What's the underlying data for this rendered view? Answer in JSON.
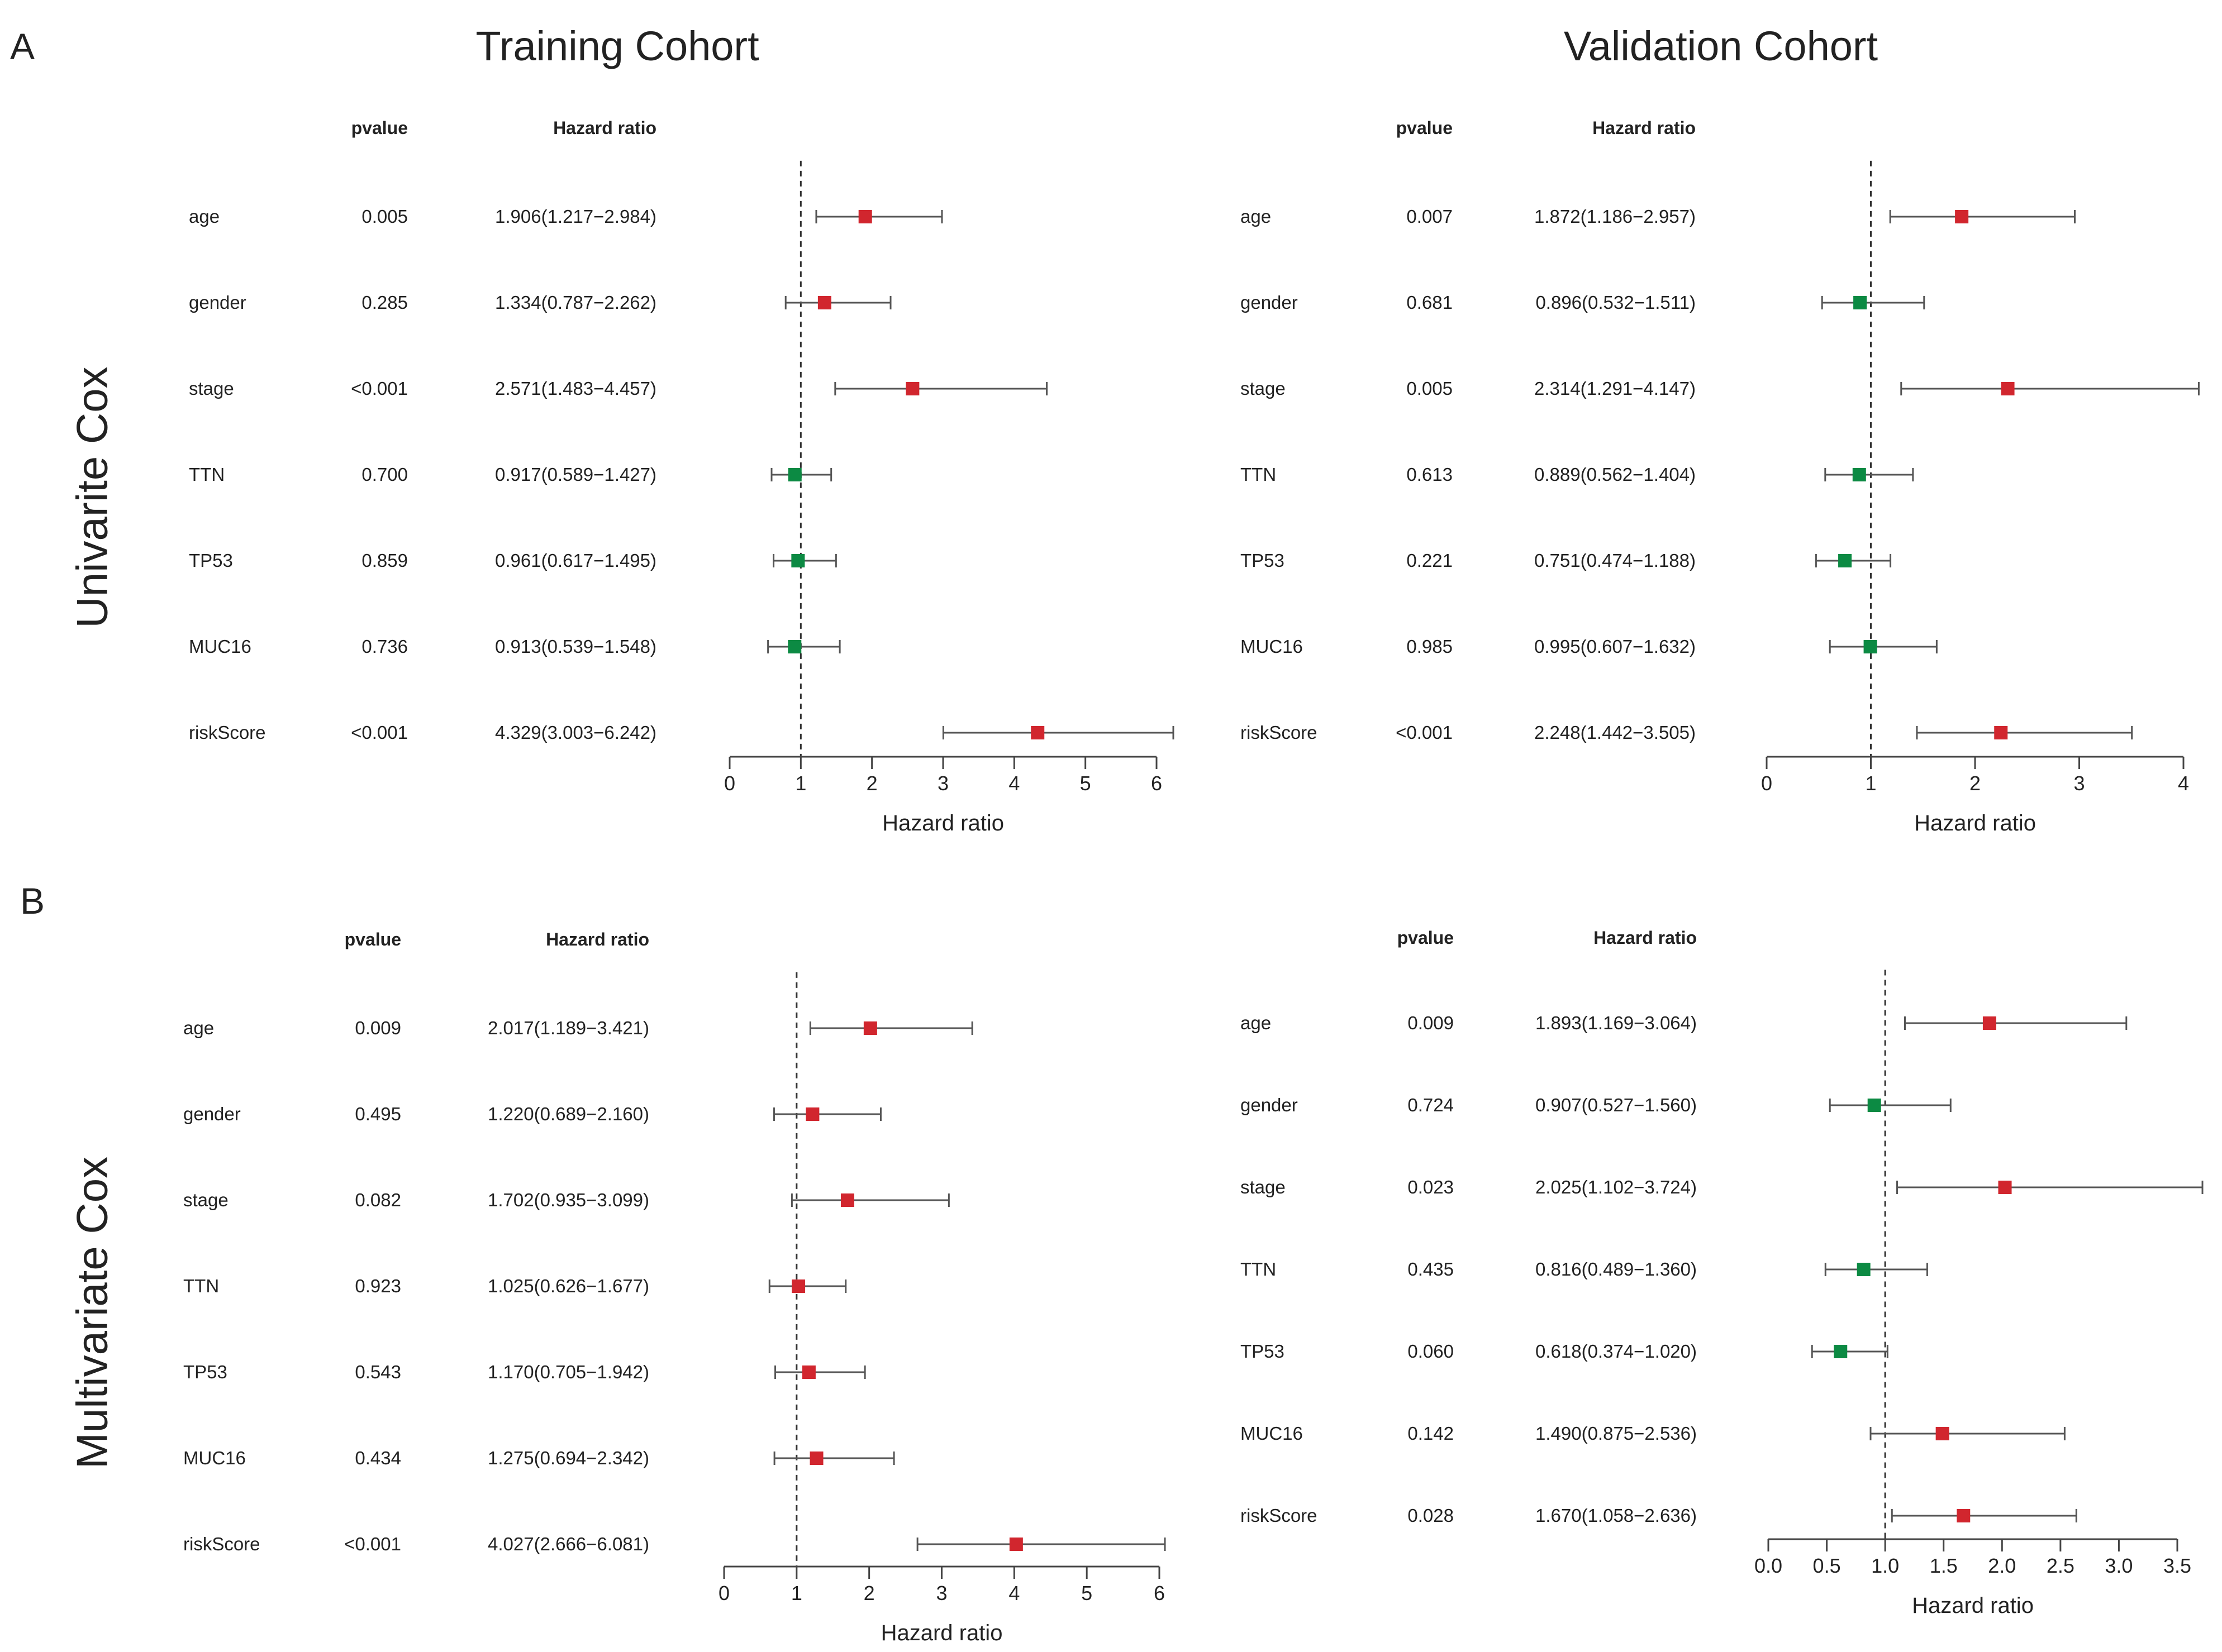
{
  "panel_labels": {
    "A": "A",
    "B": "B"
  },
  "cohort_titles": {
    "training": "Training Cohort",
    "validation": "Validation Cohort"
  },
  "row_labels": {
    "univariate": "Univarite Cox",
    "multivariate": "Multivariate Cox"
  },
  "colors": {
    "harmful": "#d1262e",
    "protective": "#0c8a43",
    "axis": "#444444"
  },
  "chart_data": [
    {
      "id": "uni-train",
      "type": "forest",
      "header": {
        "pvalue": "pvalue",
        "hr": "Hazard ratio"
      },
      "xlabel": "Hazard ratio",
      "xlim": [
        0,
        6
      ],
      "ticks": [
        "0",
        "1",
        "2",
        "3",
        "4",
        "5",
        "6"
      ],
      "tick_values": [
        0,
        1,
        2,
        3,
        4,
        5,
        6
      ],
      "ref": 1,
      "rows": [
        {
          "name": "age",
          "p": "0.005",
          "text": "1.906(1.217−2.984)",
          "hr": 1.906,
          "lo": 1.217,
          "hi": 2.984
        },
        {
          "name": "gender",
          "p": "0.285",
          "text": "1.334(0.787−2.262)",
          "hr": 1.334,
          "lo": 0.787,
          "hi": 2.262
        },
        {
          "name": "stage",
          "p": "<0.001",
          "text": "2.571(1.483−4.457)",
          "hr": 2.571,
          "lo": 1.483,
          "hi": 4.457
        },
        {
          "name": "TTN",
          "p": "0.700",
          "text": "0.917(0.589−1.427)",
          "hr": 0.917,
          "lo": 0.589,
          "hi": 1.427
        },
        {
          "name": "TP53",
          "p": "0.859",
          "text": "0.961(0.617−1.495)",
          "hr": 0.961,
          "lo": 0.617,
          "hi": 1.495
        },
        {
          "name": "MUC16",
          "p": "0.736",
          "text": "0.913(0.539−1.548)",
          "hr": 0.913,
          "lo": 0.539,
          "hi": 1.548
        },
        {
          "name": "riskScore",
          "p": "<0.001",
          "text": "4.329(3.003−6.242)",
          "hr": 4.329,
          "lo": 3.003,
          "hi": 6.242
        }
      ]
    },
    {
      "id": "uni-valid",
      "type": "forest",
      "header": {
        "pvalue": "pvalue",
        "hr": "Hazard ratio"
      },
      "xlabel": "Hazard ratio",
      "xlim": [
        0,
        4
      ],
      "ticks": [
        "0",
        "1",
        "2",
        "3",
        "4"
      ],
      "tick_values": [
        0,
        1,
        2,
        3,
        4
      ],
      "ref": 1,
      "rows": [
        {
          "name": "age",
          "p": "0.007",
          "text": "1.872(1.186−2.957)",
          "hr": 1.872,
          "lo": 1.186,
          "hi": 2.957
        },
        {
          "name": "gender",
          "p": "0.681",
          "text": "0.896(0.532−1.511)",
          "hr": 0.896,
          "lo": 0.532,
          "hi": 1.511
        },
        {
          "name": "stage",
          "p": "0.005",
          "text": "2.314(1.291−4.147)",
          "hr": 2.314,
          "lo": 1.291,
          "hi": 4.147
        },
        {
          "name": "TTN",
          "p": "0.613",
          "text": "0.889(0.562−1.404)",
          "hr": 0.889,
          "lo": 0.562,
          "hi": 1.404
        },
        {
          "name": "TP53",
          "p": "0.221",
          "text": "0.751(0.474−1.188)",
          "hr": 0.751,
          "lo": 0.474,
          "hi": 1.188
        },
        {
          "name": "MUC16",
          "p": "0.985",
          "text": "0.995(0.607−1.632)",
          "hr": 0.995,
          "lo": 0.607,
          "hi": 1.632
        },
        {
          "name": "riskScore",
          "p": "<0.001",
          "text": "2.248(1.442−3.505)",
          "hr": 2.248,
          "lo": 1.442,
          "hi": 3.505
        }
      ]
    },
    {
      "id": "multi-train",
      "type": "forest",
      "header": {
        "pvalue": "pvalue",
        "hr": "Hazard ratio"
      },
      "xlabel": "Hazard ratio",
      "xlim": [
        0,
        6
      ],
      "ticks": [
        "0",
        "1",
        "2",
        "3",
        "4",
        "5",
        "6"
      ],
      "tick_values": [
        0,
        1,
        2,
        3,
        4,
        5,
        6
      ],
      "ref": 1,
      "rows": [
        {
          "name": "age",
          "p": "0.009",
          "text": "2.017(1.189−3.421)",
          "hr": 2.017,
          "lo": 1.189,
          "hi": 3.421
        },
        {
          "name": "gender",
          "p": "0.495",
          "text": "1.220(0.689−2.160)",
          "hr": 1.22,
          "lo": 0.689,
          "hi": 2.16
        },
        {
          "name": "stage",
          "p": "0.082",
          "text": "1.702(0.935−3.099)",
          "hr": 1.702,
          "lo": 0.935,
          "hi": 3.099
        },
        {
          "name": "TTN",
          "p": "0.923",
          "text": "1.025(0.626−1.677)",
          "hr": 1.025,
          "lo": 0.626,
          "hi": 1.677
        },
        {
          "name": "TP53",
          "p": "0.543",
          "text": "1.170(0.705−1.942)",
          "hr": 1.17,
          "lo": 0.705,
          "hi": 1.942
        },
        {
          "name": "MUC16",
          "p": "0.434",
          "text": "1.275(0.694−2.342)",
          "hr": 1.275,
          "lo": 0.694,
          "hi": 2.342
        },
        {
          "name": "riskScore",
          "p": "<0.001",
          "text": "4.027(2.666−6.081)",
          "hr": 4.027,
          "lo": 2.666,
          "hi": 6.081
        }
      ]
    },
    {
      "id": "multi-valid",
      "type": "forest",
      "header": {
        "pvalue": "pvalue",
        "hr": "Hazard ratio"
      },
      "xlabel": "Hazard ratio",
      "xlim": [
        0,
        3.5
      ],
      "ticks": [
        "0.0",
        "0.5",
        "1.0",
        "1.5",
        "2.0",
        "2.5",
        "3.0",
        "3.5"
      ],
      "tick_values": [
        0,
        0.5,
        1,
        1.5,
        2,
        2.5,
        3,
        3.5
      ],
      "ref": 1,
      "rows": [
        {
          "name": "age",
          "p": "0.009",
          "text": "1.893(1.169−3.064)",
          "hr": 1.893,
          "lo": 1.169,
          "hi": 3.064
        },
        {
          "name": "gender",
          "p": "0.724",
          "text": "0.907(0.527−1.560)",
          "hr": 0.907,
          "lo": 0.527,
          "hi": 1.56
        },
        {
          "name": "stage",
          "p": "0.023",
          "text": "2.025(1.102−3.724)",
          "hr": 2.025,
          "lo": 1.102,
          "hi": 3.724
        },
        {
          "name": "TTN",
          "p": "0.435",
          "text": "0.816(0.489−1.360)",
          "hr": 0.816,
          "lo": 0.489,
          "hi": 1.36
        },
        {
          "name": "TP53",
          "p": "0.060",
          "text": "0.618(0.374−1.020)",
          "hr": 0.618,
          "lo": 0.374,
          "hi": 1.02
        },
        {
          "name": "MUC16",
          "p": "0.142",
          "text": "1.490(0.875−2.536)",
          "hr": 1.49,
          "lo": 0.875,
          "hi": 2.536
        },
        {
          "name": "riskScore",
          "p": "0.028",
          "text": "1.670(1.058−2.636)",
          "hr": 1.67,
          "lo": 1.058,
          "hi": 2.636
        }
      ]
    }
  ]
}
